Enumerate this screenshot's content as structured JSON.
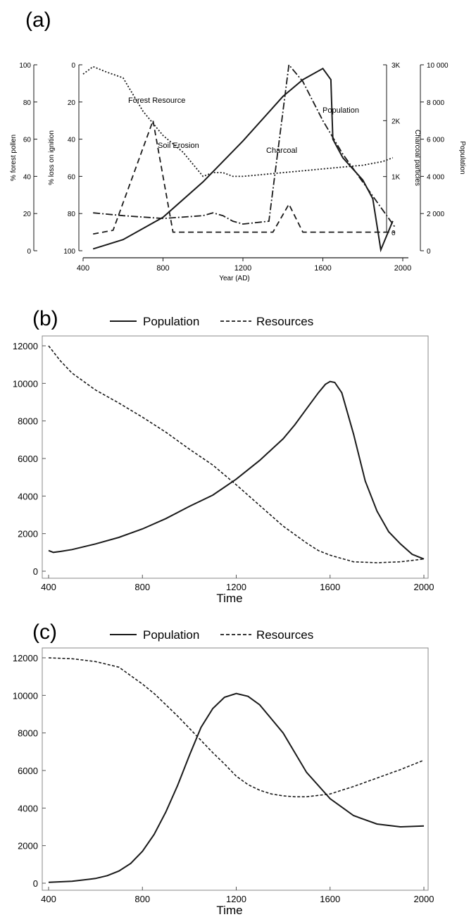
{
  "chart_data": [
    {
      "panel_label": "(a)",
      "type": "line",
      "xlabel": "Year (AD)",
      "x_ticks": [
        "400",
        "800",
        "1200",
        "1600",
        "2000"
      ],
      "xlim": [
        400,
        2000
      ],
      "axes": [
        {
          "label": "% forest pollen",
          "ticks": [
            "100",
            "80",
            "60",
            "40",
            "20",
            "0"
          ],
          "range": [
            0,
            100
          ]
        },
        {
          "label": "% loss on ignition",
          "ticks": [
            "0",
            "20",
            "40",
            "60",
            "80",
            "100"
          ],
          "range": [
            100,
            0
          ],
          "inverted": true
        },
        {
          "label": "Charcoal particles",
          "ticks": [
            "3K",
            "2K",
            "1K",
            "0"
          ],
          "range": [
            0,
            3000
          ]
        },
        {
          "label": "Population",
          "ticks": [
            "10 000",
            "8 000",
            "6 000",
            "4 000",
            "2 000",
            "0"
          ],
          "range": [
            0,
            10000
          ]
        }
      ],
      "series": [
        {
          "name": "Forest Resource",
          "axis": "% forest pollen",
          "style": "dotted",
          "x": [
            400,
            450,
            520,
            600,
            700,
            800,
            900,
            1000,
            1050,
            1100,
            1150,
            1200,
            1300,
            1400,
            1500,
            1600,
            1700,
            1800,
            1900,
            1950
          ],
          "y": [
            95,
            99,
            96,
            93,
            75,
            62,
            53,
            40,
            42,
            42,
            40,
            40,
            41,
            42,
            43,
            44,
            45,
            46,
            48,
            50
          ]
        },
        {
          "name": "Soil Erosion",
          "axis": "% loss on ignition",
          "style": "dashed",
          "x": [
            450,
            550,
            750,
            850,
            950,
            1100,
            1250,
            1350,
            1430,
            1500,
            1700,
            1900,
            1960
          ],
          "y": [
            91,
            89,
            30,
            90,
            90,
            90,
            90,
            90,
            75,
            90,
            90,
            90,
            90
          ]
        },
        {
          "name": "Charcoal",
          "axis": "Charcoal particles",
          "style": "dash-dot",
          "x": [
            450,
            600,
            800,
            1000,
            1050,
            1100,
            1150,
            1200,
            1330,
            1430,
            1500,
            1600,
            1700,
            1800,
            1900,
            1960
          ],
          "y": [
            350,
            300,
            250,
            300,
            350,
            300,
            200,
            150,
            200,
            3000,
            2700,
            2000,
            1400,
            900,
            400,
            100
          ]
        },
        {
          "name": "Population",
          "axis": "Population",
          "style": "solid",
          "x": [
            450,
            600,
            800,
            1000,
            1200,
            1400,
            1500,
            1600,
            1640,
            1650,
            1700,
            1800,
            1850,
            1890,
            1950
          ],
          "y": [
            100,
            600,
            1800,
            3700,
            5900,
            8300,
            9200,
            9800,
            9200,
            6000,
            5000,
            3800,
            2800,
            50,
            1600
          ]
        }
      ],
      "annotations": [
        "Forest Resource",
        "Soil Erosion",
        "Charcoal",
        "Population"
      ]
    },
    {
      "panel_label": "(b)",
      "type": "line",
      "xlabel": "Time",
      "x_ticks": [
        "400",
        "800",
        "1200",
        "1600",
        "2000"
      ],
      "y_ticks": [
        "0",
        "2000",
        "4000",
        "6000",
        "8000",
        "10000",
        "12000"
      ],
      "xlim": [
        400,
        2000
      ],
      "ylim": [
        0,
        12000
      ],
      "legend": "top",
      "series": [
        {
          "name": "Population",
          "style": "solid",
          "x": [
            400,
            420,
            450,
            500,
            600,
            700,
            800,
            900,
            1000,
            1100,
            1200,
            1300,
            1400,
            1450,
            1500,
            1550,
            1580,
            1600,
            1620,
            1650,
            1700,
            1750,
            1800,
            1850,
            1900,
            1950,
            2000
          ],
          "y": [
            1100,
            1000,
            1050,
            1150,
            1450,
            1800,
            2250,
            2800,
            3450,
            4050,
            4900,
            5900,
            7050,
            7800,
            8650,
            9500,
            9950,
            10100,
            10050,
            9500,
            7300,
            4800,
            3200,
            2100,
            1450,
            900,
            650
          ]
        },
        {
          "name": "Resources",
          "style": "dashed",
          "x": [
            400,
            450,
            500,
            600,
            700,
            800,
            900,
            1000,
            1100,
            1200,
            1300,
            1400,
            1500,
            1550,
            1600,
            1700,
            1800,
            1900,
            2000
          ],
          "y": [
            12000,
            11200,
            10550,
            9650,
            8950,
            8200,
            7400,
            6500,
            5650,
            4600,
            3500,
            2400,
            1500,
            1100,
            850,
            500,
            450,
            500,
            650
          ]
        }
      ]
    },
    {
      "panel_label": "(c)",
      "type": "line",
      "xlabel": "Time",
      "x_ticks": [
        "400",
        "800",
        "1200",
        "1600",
        "2000"
      ],
      "y_ticks": [
        "0",
        "2000",
        "4000",
        "6000",
        "8000",
        "10000",
        "12000"
      ],
      "xlim": [
        400,
        2000
      ],
      "ylim": [
        0,
        12000
      ],
      "legend": "top",
      "series": [
        {
          "name": "Population",
          "style": "solid",
          "x": [
            400,
            500,
            600,
            650,
            700,
            750,
            800,
            850,
            900,
            950,
            1000,
            1050,
            1100,
            1150,
            1200,
            1250,
            1300,
            1400,
            1500,
            1600,
            1700,
            1800,
            1900,
            2000
          ],
          "y": [
            50,
            100,
            250,
            400,
            650,
            1050,
            1700,
            2600,
            3800,
            5200,
            6800,
            8300,
            9300,
            9900,
            10100,
            9950,
            9500,
            8000,
            5900,
            4500,
            3600,
            3150,
            3000,
            3050
          ]
        },
        {
          "name": "Resources",
          "style": "dashed",
          "x": [
            400,
            500,
            600,
            700,
            800,
            850,
            900,
            950,
            1000,
            1050,
            1100,
            1150,
            1200,
            1250,
            1300,
            1350,
            1400,
            1450,
            1500,
            1600,
            1700,
            1800,
            1900,
            2000
          ],
          "y": [
            12000,
            11950,
            11800,
            11500,
            10600,
            10100,
            9500,
            8900,
            8250,
            7600,
            6950,
            6350,
            5700,
            5250,
            4950,
            4750,
            4650,
            4600,
            4600,
            4750,
            5150,
            5600,
            6050,
            6550
          ]
        }
      ]
    }
  ]
}
